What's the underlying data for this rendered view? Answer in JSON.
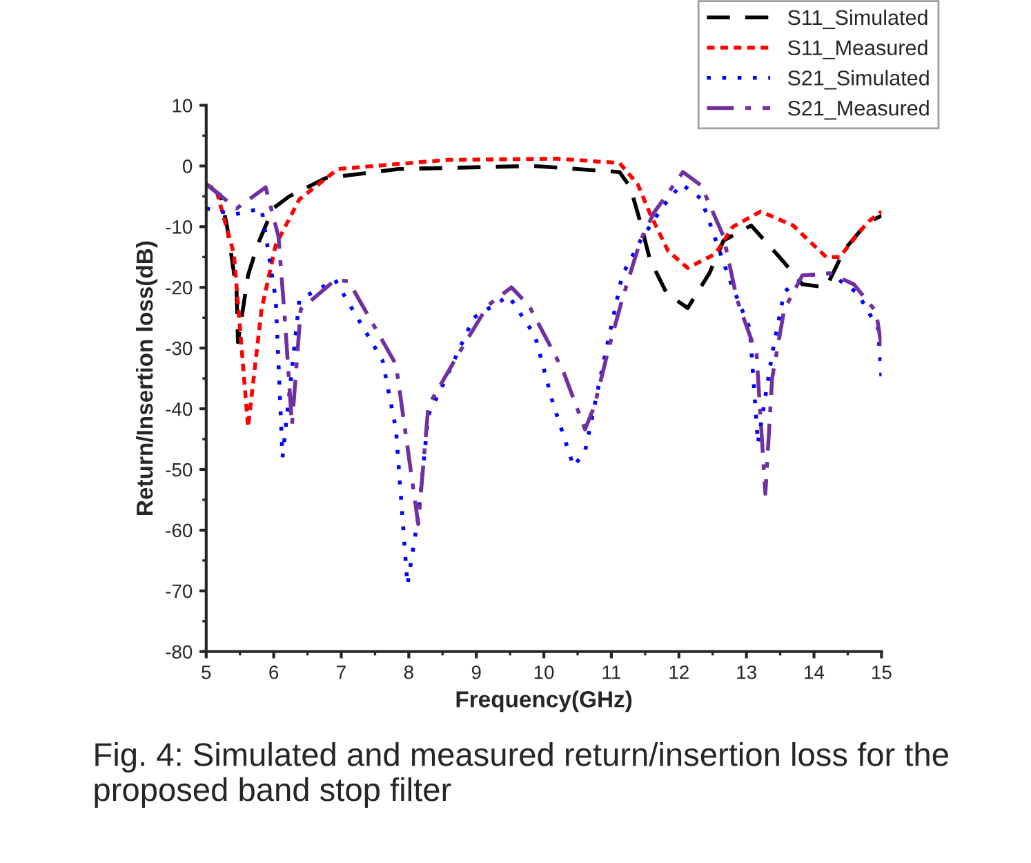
{
  "chart_data": {
    "type": "line",
    "xlabel": "Frequency(GHz)",
    "ylabel": "Return/Insertion loss(dB)",
    "xlim": [
      5,
      15
    ],
    "xticks": [
      5,
      6,
      7,
      8,
      9,
      10,
      11,
      12,
      13,
      14,
      15
    ],
    "ylim": [
      -80,
      10
    ],
    "yticks": [
      -80,
      -70,
      -60,
      -50,
      -40,
      -30,
      -20,
      -10,
      0,
      10
    ],
    "grid": false,
    "legend": "top right",
    "marker": "none",
    "annotations": [
      "Fig. 4: Simulated and measured return/insertion loss for the proposed band stop filter"
    ],
    "series": [
      {
        "name": "S11_Simulated",
        "color": "#000000",
        "line_style": "dashed",
        "x": [
          5,
          5.21,
          5.31,
          5.45,
          5.47,
          5.62,
          5.76,
          5.99,
          6.23,
          6.77,
          7.85,
          9.85,
          11.12,
          11.28,
          11.43,
          11.57,
          11.82,
          12.13,
          12.45,
          12.66,
          13.07,
          13.52,
          13.83,
          14.18,
          14.45,
          14.79,
          15
        ],
        "values": [
          -3,
          -4.8,
          -10,
          -20.6,
          -29,
          -18,
          -13,
          -7,
          -5,
          -2,
          -0.5,
          0,
          -1,
          -3.5,
          -9.3,
          -15.4,
          -21,
          -23.4,
          -17.7,
          -12.3,
          -9.8,
          -15.4,
          -19.5,
          -20,
          -13.8,
          -9.3,
          -8.2
        ]
      },
      {
        "name": "S11_Measured",
        "color": "#ff0000",
        "line_style": "dotted",
        "x": [
          5,
          5.15,
          5.41,
          5.62,
          5.82,
          6.03,
          6.38,
          6.95,
          8.57,
          10.2,
          11.12,
          11.39,
          11.57,
          11.84,
          12.13,
          12.54,
          12.8,
          13.21,
          13.69,
          14.18,
          14.38,
          14.79,
          15
        ],
        "values": [
          -3,
          -4,
          -14.5,
          -43,
          -23.6,
          -13,
          -5.5,
          -0.5,
          1,
          1.2,
          0.5,
          -3,
          -7.8,
          -14,
          -16.8,
          -14.5,
          -10,
          -7.5,
          -9.8,
          -15,
          -15,
          -9.3,
          -7.5
        ]
      },
      {
        "name": "S21_Simulated",
        "color": "#0000ff",
        "line_style": "loosely dotted",
        "x": [
          5,
          5.41,
          5.82,
          6.03,
          6.13,
          6.38,
          6.91,
          7.61,
          7.81,
          7.98,
          8.14,
          8.29,
          8.55,
          8.96,
          9.48,
          9.87,
          10.13,
          10.44,
          10.61,
          10.89,
          11.16,
          11.43,
          11.78,
          12.04,
          12.33,
          12.76,
          13.05,
          13.17,
          13.38,
          13.56,
          13.89,
          14.24,
          14.65,
          14.95,
          15
        ],
        "values": [
          -7,
          -8,
          -7,
          -22,
          -48,
          -22,
          -18.8,
          -32,
          -43.4,
          -69,
          -57.7,
          -41,
          -35,
          -25,
          -21.4,
          -28,
          -38.9,
          -49.5,
          -47,
          -32,
          -18,
          -12.3,
          -6.4,
          -3,
          -5.4,
          -19,
          -26.8,
          -45.7,
          -31,
          -20.7,
          -18,
          -17.7,
          -21,
          -26.8,
          -35
        ]
      },
      {
        "name": "S21_Measured",
        "color": "#7030a0",
        "line_style": "dashdot",
        "x": [
          5,
          5.45,
          5.88,
          6.07,
          6.17,
          6.27,
          6.4,
          6.91,
          7.11,
          7.81,
          8.14,
          8.29,
          8.76,
          9.17,
          9.52,
          9.78,
          10.28,
          10.61,
          10.75,
          10.95,
          11.16,
          11.43,
          11.63,
          12.06,
          12.33,
          12.66,
          12.86,
          13.15,
          13.28,
          13.38,
          13.56,
          13.83,
          14.24,
          14.59,
          14.92,
          15
        ],
        "values": [
          -3,
          -7,
          -3.5,
          -11.6,
          -26,
          -42.7,
          -23.6,
          -18.8,
          -19,
          -32.7,
          -59,
          -39.5,
          -30.5,
          -23,
          -20,
          -23,
          -33.6,
          -43.4,
          -39.5,
          -30.5,
          -22,
          -12.3,
          -7.7,
          -1,
          -3.2,
          -11.6,
          -22,
          -31,
          -54,
          -35,
          -23.6,
          -18,
          -17.7,
          -19.5,
          -24,
          -29.8
        ]
      }
    ]
  }
}
